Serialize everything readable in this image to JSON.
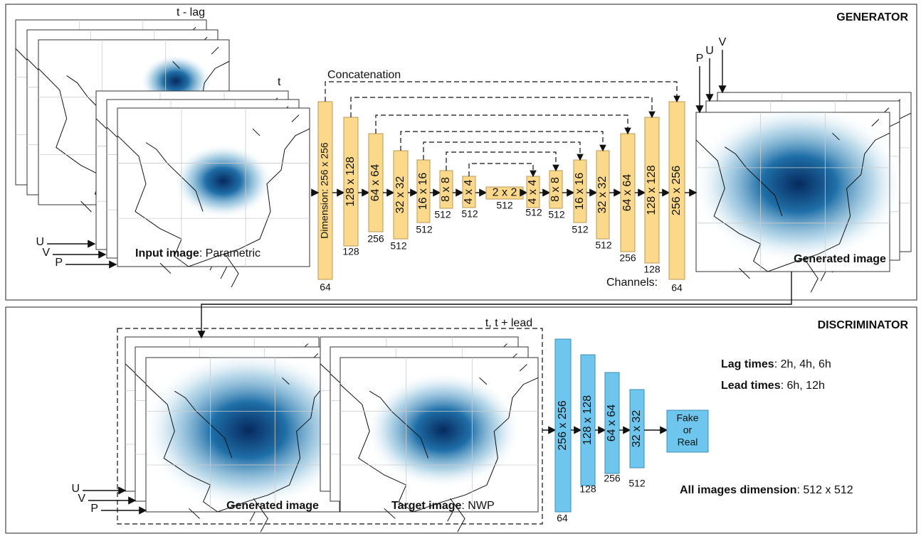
{
  "generator": {
    "title": "GENERATOR",
    "lag_label": "t - lag",
    "t_label": "t",
    "concat_label": "Concatenation",
    "input_arrows": [
      "U",
      "V",
      "P"
    ],
    "output_arrows": [
      "P",
      "U",
      "V"
    ],
    "input_caption": {
      "bold": "Input image",
      "rest": ": Parametric"
    },
    "output_caption": "Generated image",
    "blocks": [
      {
        "size": "Dimension: 256 x 256",
        "channels": "64"
      },
      {
        "size": "128 x 128",
        "channels": "128"
      },
      {
        "size": "64 x 64",
        "channels": "256"
      },
      {
        "size": "32 x 32",
        "channels": "512"
      },
      {
        "size": "16 x 16",
        "channels": "512"
      },
      {
        "size": "8 x 8",
        "channels": "512"
      },
      {
        "size": "4 x 4",
        "channels": "512"
      },
      {
        "size": "2 x 2",
        "channels": "512"
      },
      {
        "size": "4 x 4",
        "channels": "512"
      },
      {
        "size": "8 x 8",
        "channels": "512"
      },
      {
        "size": "16 x 16",
        "channels": "512"
      },
      {
        "size": "32 x 32",
        "channels": "512"
      },
      {
        "size": "64 x 64",
        "channels": "256"
      },
      {
        "size": "128 x 128",
        "channels": "128"
      },
      {
        "size": "256 x 256",
        "channels": "64"
      }
    ],
    "channels_label": "Channels:"
  },
  "discriminator": {
    "title": "DISCRIMINATOR",
    "lead_label": "t, t + lead",
    "input_arrows": [
      "U",
      "V",
      "P"
    ],
    "generated_caption": "Generated image",
    "target_caption": {
      "bold": "Target image",
      "rest": ": NWP"
    },
    "blocks": [
      {
        "size": "256 x 256",
        "channels": "64"
      },
      {
        "size": "128 x 128",
        "channels": "128"
      },
      {
        "size": "64 x 64",
        "channels": "256"
      },
      {
        "size": "32 x 32",
        "channels": "512"
      }
    ],
    "output": [
      "Fake",
      "or",
      "Real"
    ],
    "notes": [
      {
        "bold": "Lag times",
        "rest": ": 2h, 4h, 6h"
      },
      {
        "bold": "Lead times",
        "rest": ": 6h, 12h"
      },
      {
        "bold": "All images dimension",
        "rest": ": 512 x 512"
      }
    ]
  }
}
